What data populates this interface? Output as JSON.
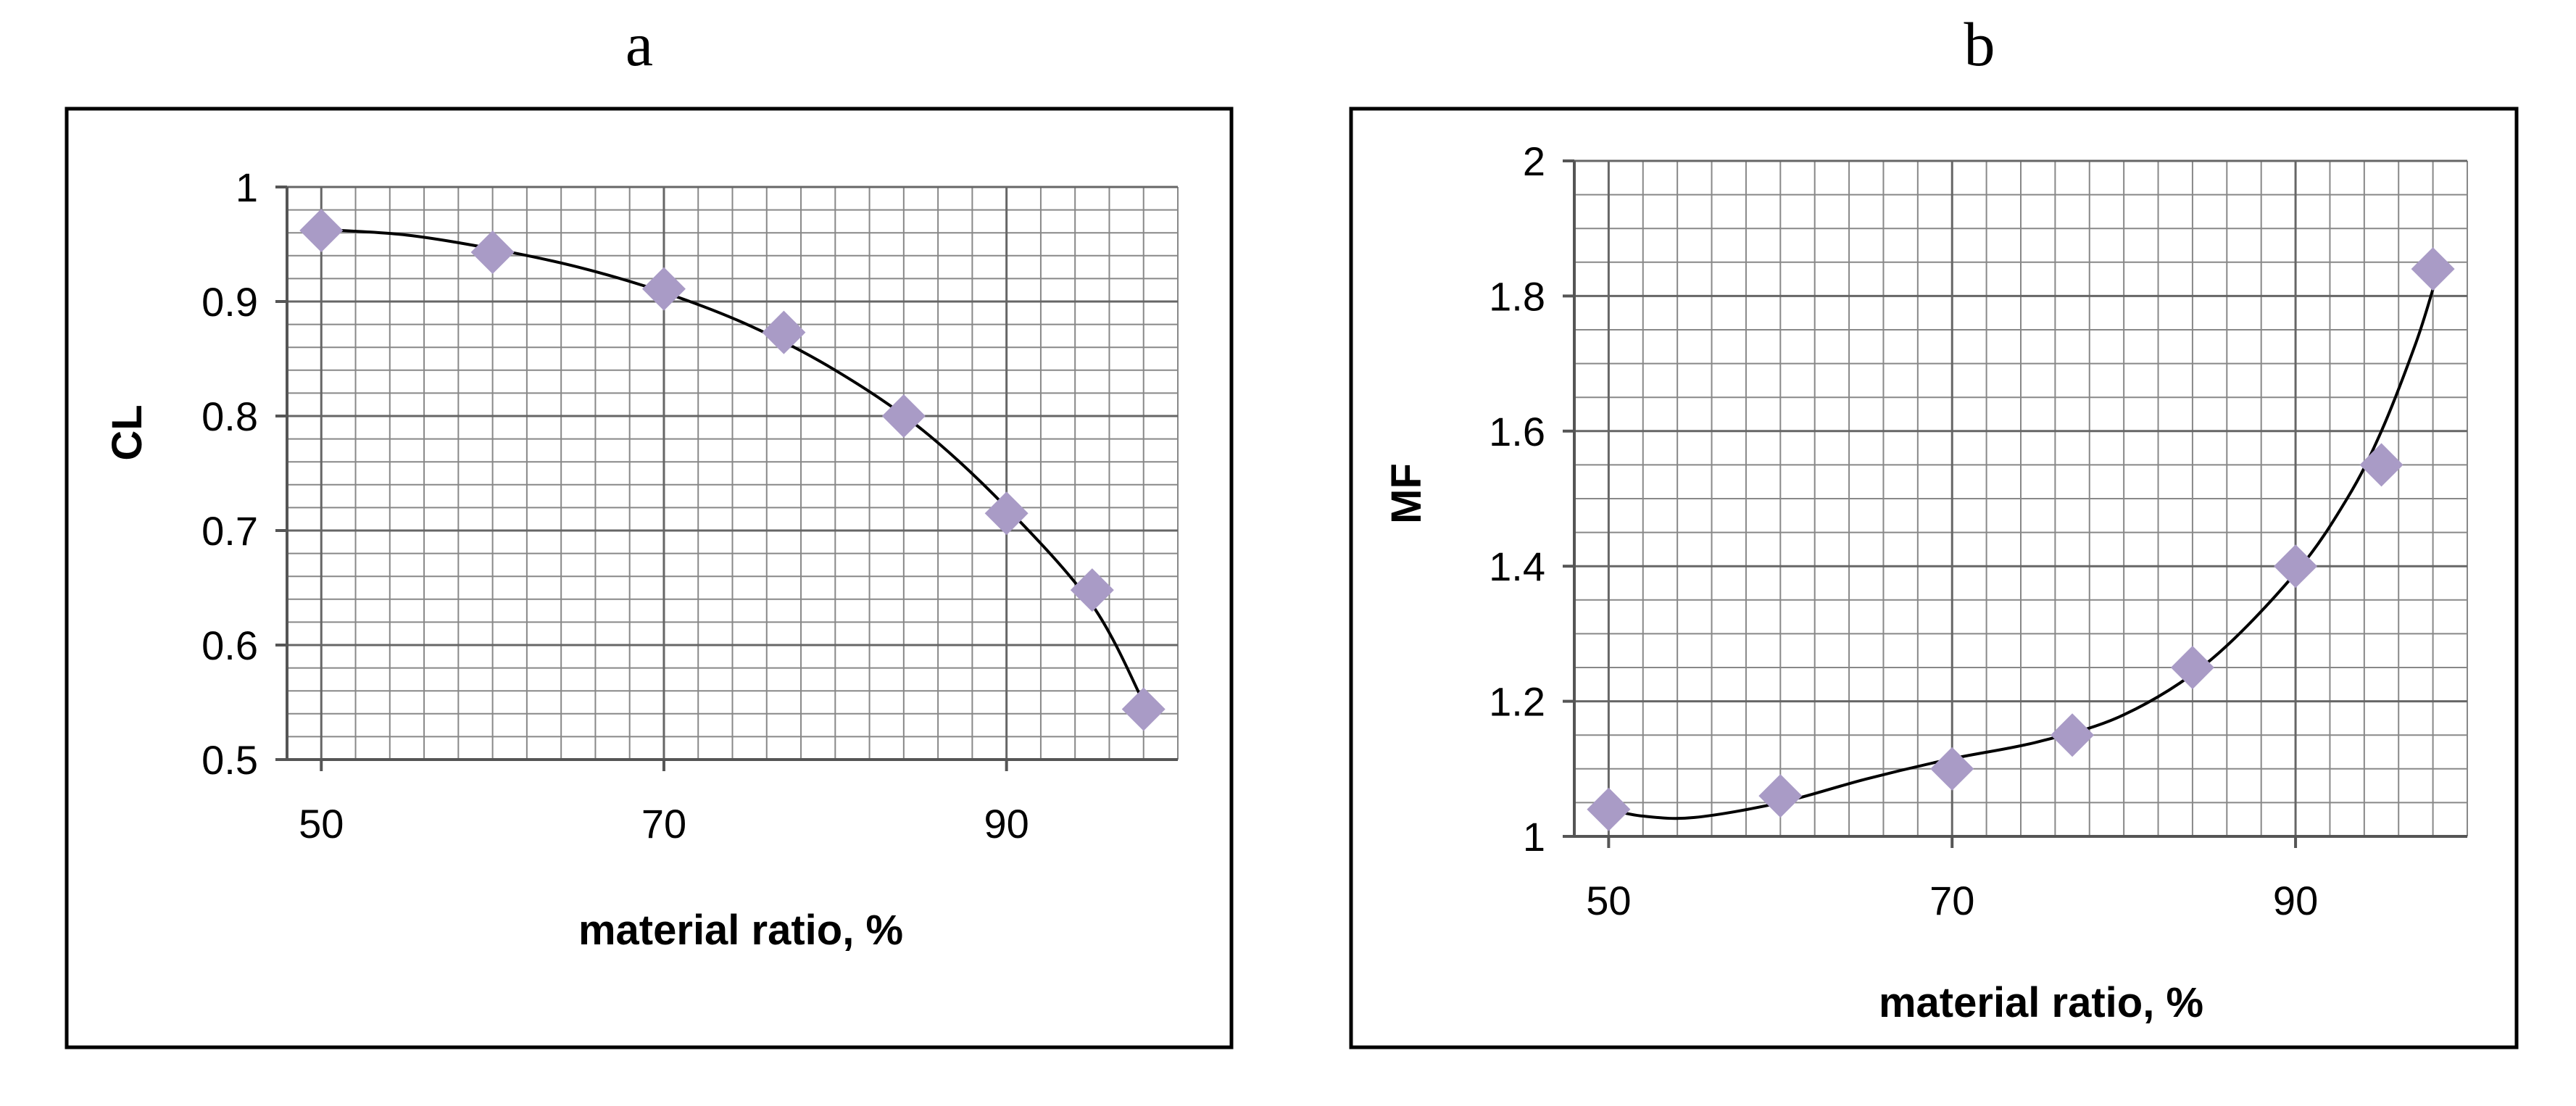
{
  "colors": {
    "marker": "#a99bc6",
    "curve": "#000000",
    "grid": "#888888",
    "frame": "#000000",
    "text": "#000000"
  },
  "chart_data": [
    {
      "panel_label": "a",
      "type": "scatter",
      "trendline": "polynomial",
      "title": "",
      "xlabel": "material ratio, %",
      "ylabel": "CL",
      "xlim": [
        48,
        100
      ],
      "ylim": [
        0.5,
        1.0
      ],
      "x_ticks": [
        50,
        70,
        90
      ],
      "x_tick_labels": [
        "50",
        "70",
        "90"
      ],
      "x_minor_step": 2,
      "y_ticks": [
        0.5,
        0.6,
        0.7,
        0.8,
        0.9,
        1.0
      ],
      "y_tick_labels": [
        "0.5",
        "0.6",
        "0.7",
        "0.8",
        "0.9",
        "1"
      ],
      "y_minor_step": 0.02,
      "grid": true,
      "points": [
        {
          "x": 50,
          "y": 0.962
        },
        {
          "x": 60,
          "y": 0.943
        },
        {
          "x": 70,
          "y": 0.911
        },
        {
          "x": 77,
          "y": 0.873
        },
        {
          "x": 84,
          "y": 0.8
        },
        {
          "x": 90,
          "y": 0.715
        },
        {
          "x": 95,
          "y": 0.648
        },
        {
          "x": 98,
          "y": 0.544
        }
      ],
      "fit_points": [
        {
          "x": 50,
          "y": 0.963
        },
        {
          "x": 55,
          "y": 0.958
        },
        {
          "x": 60,
          "y": 0.946
        },
        {
          "x": 65,
          "y": 0.93
        },
        {
          "x": 70,
          "y": 0.908
        },
        {
          "x": 75,
          "y": 0.879
        },
        {
          "x": 80,
          "y": 0.84
        },
        {
          "x": 85,
          "y": 0.789
        },
        {
          "x": 90,
          "y": 0.72
        },
        {
          "x": 95,
          "y": 0.635
        },
        {
          "x": 98,
          "y": 0.55
        }
      ]
    },
    {
      "panel_label": "b",
      "type": "scatter",
      "trendline": "polynomial",
      "title": "",
      "xlabel": "material ratio, %",
      "ylabel": "MF",
      "xlim": [
        48,
        100
      ],
      "ylim": [
        1.0,
        2.0
      ],
      "x_ticks": [
        50,
        70,
        90
      ],
      "x_tick_labels": [
        "50",
        "70",
        "90"
      ],
      "x_minor_step": 2,
      "y_ticks": [
        1.0,
        1.2,
        1.4,
        1.6,
        1.8,
        2.0
      ],
      "y_tick_labels": [
        "1",
        "1.2",
        "1.4",
        "1.6",
        "1.8",
        "2"
      ],
      "y_minor_step": 0.05,
      "grid": true,
      "points": [
        {
          "x": 50,
          "y": 1.04
        },
        {
          "x": 60,
          "y": 1.06
        },
        {
          "x": 70,
          "y": 1.1
        },
        {
          "x": 77,
          "y": 1.15
        },
        {
          "x": 84,
          "y": 1.25
        },
        {
          "x": 90,
          "y": 1.4
        },
        {
          "x": 95,
          "y": 1.55
        },
        {
          "x": 98,
          "y": 1.84
        }
      ],
      "fit_points": [
        {
          "x": 50,
          "y": 1.04
        },
        {
          "x": 52,
          "y": 1.03
        },
        {
          "x": 55,
          "y": 1.028
        },
        {
          "x": 60,
          "y": 1.05
        },
        {
          "x": 65,
          "y": 1.085
        },
        {
          "x": 70,
          "y": 1.115
        },
        {
          "x": 75,
          "y": 1.14
        },
        {
          "x": 80,
          "y": 1.18
        },
        {
          "x": 85,
          "y": 1.26
        },
        {
          "x": 90,
          "y": 1.39
        },
        {
          "x": 93,
          "y": 1.5
        },
        {
          "x": 95,
          "y": 1.6
        },
        {
          "x": 97,
          "y": 1.73
        },
        {
          "x": 98,
          "y": 1.81
        }
      ]
    }
  ]
}
